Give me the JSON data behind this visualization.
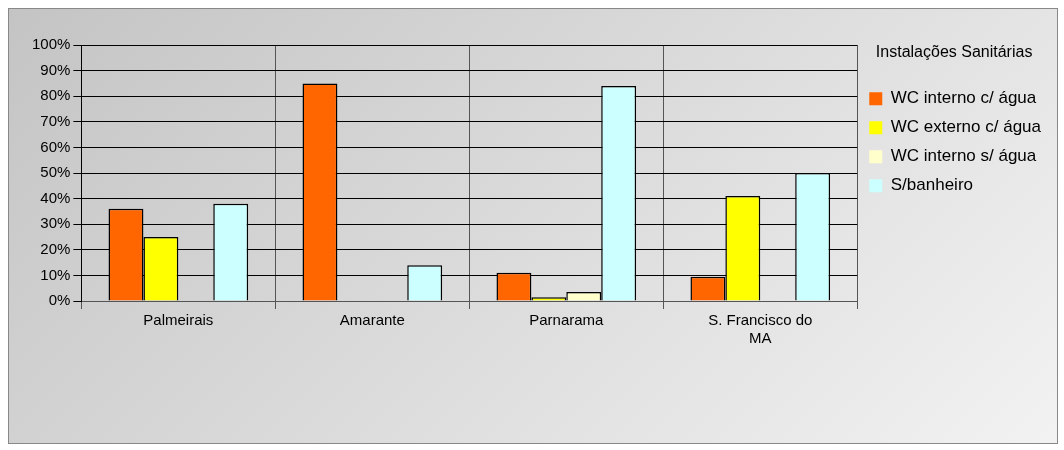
{
  "chart_data": {
    "type": "bar",
    "legend_title": "Instalações Sanitárias",
    "categories": [
      "Palmeirais",
      "Amarante",
      "Parnarama",
      "S. Francisco do MA"
    ],
    "series": [
      {
        "name": "WC interno c/ água",
        "color": "#ff6600",
        "values": [
          36,
          85,
          11,
          9.5
        ]
      },
      {
        "name": "WC externo c/ água",
        "color": "#ffff00",
        "values": [
          25,
          0,
          1.5,
          41
        ]
      },
      {
        "name": "WC interno s/ água",
        "color": "#ffffcc",
        "values": [
          0,
          0,
          3.5,
          0
        ]
      },
      {
        "name": "S/banheiro",
        "color": "#ccffff",
        "values": [
          38,
          14,
          84,
          50
        ]
      }
    ],
    "ylim": [
      0,
      100
    ],
    "yticks": [
      {
        "value": 0,
        "label": "0%"
      },
      {
        "value": 10,
        "label": "10%"
      },
      {
        "value": 20,
        "label": "20%"
      },
      {
        "value": 30,
        "label": "30%"
      },
      {
        "value": 40,
        "label": "40%"
      },
      {
        "value": 50,
        "label": "50%"
      },
      {
        "value": 60,
        "label": "60%"
      },
      {
        "value": 70,
        "label": "70%"
      },
      {
        "value": 80,
        "label": "80%"
      },
      {
        "value": 90,
        "label": "90%"
      },
      {
        "value": 100,
        "label": "100%"
      }
    ],
    "grid": true,
    "legend": "right"
  }
}
